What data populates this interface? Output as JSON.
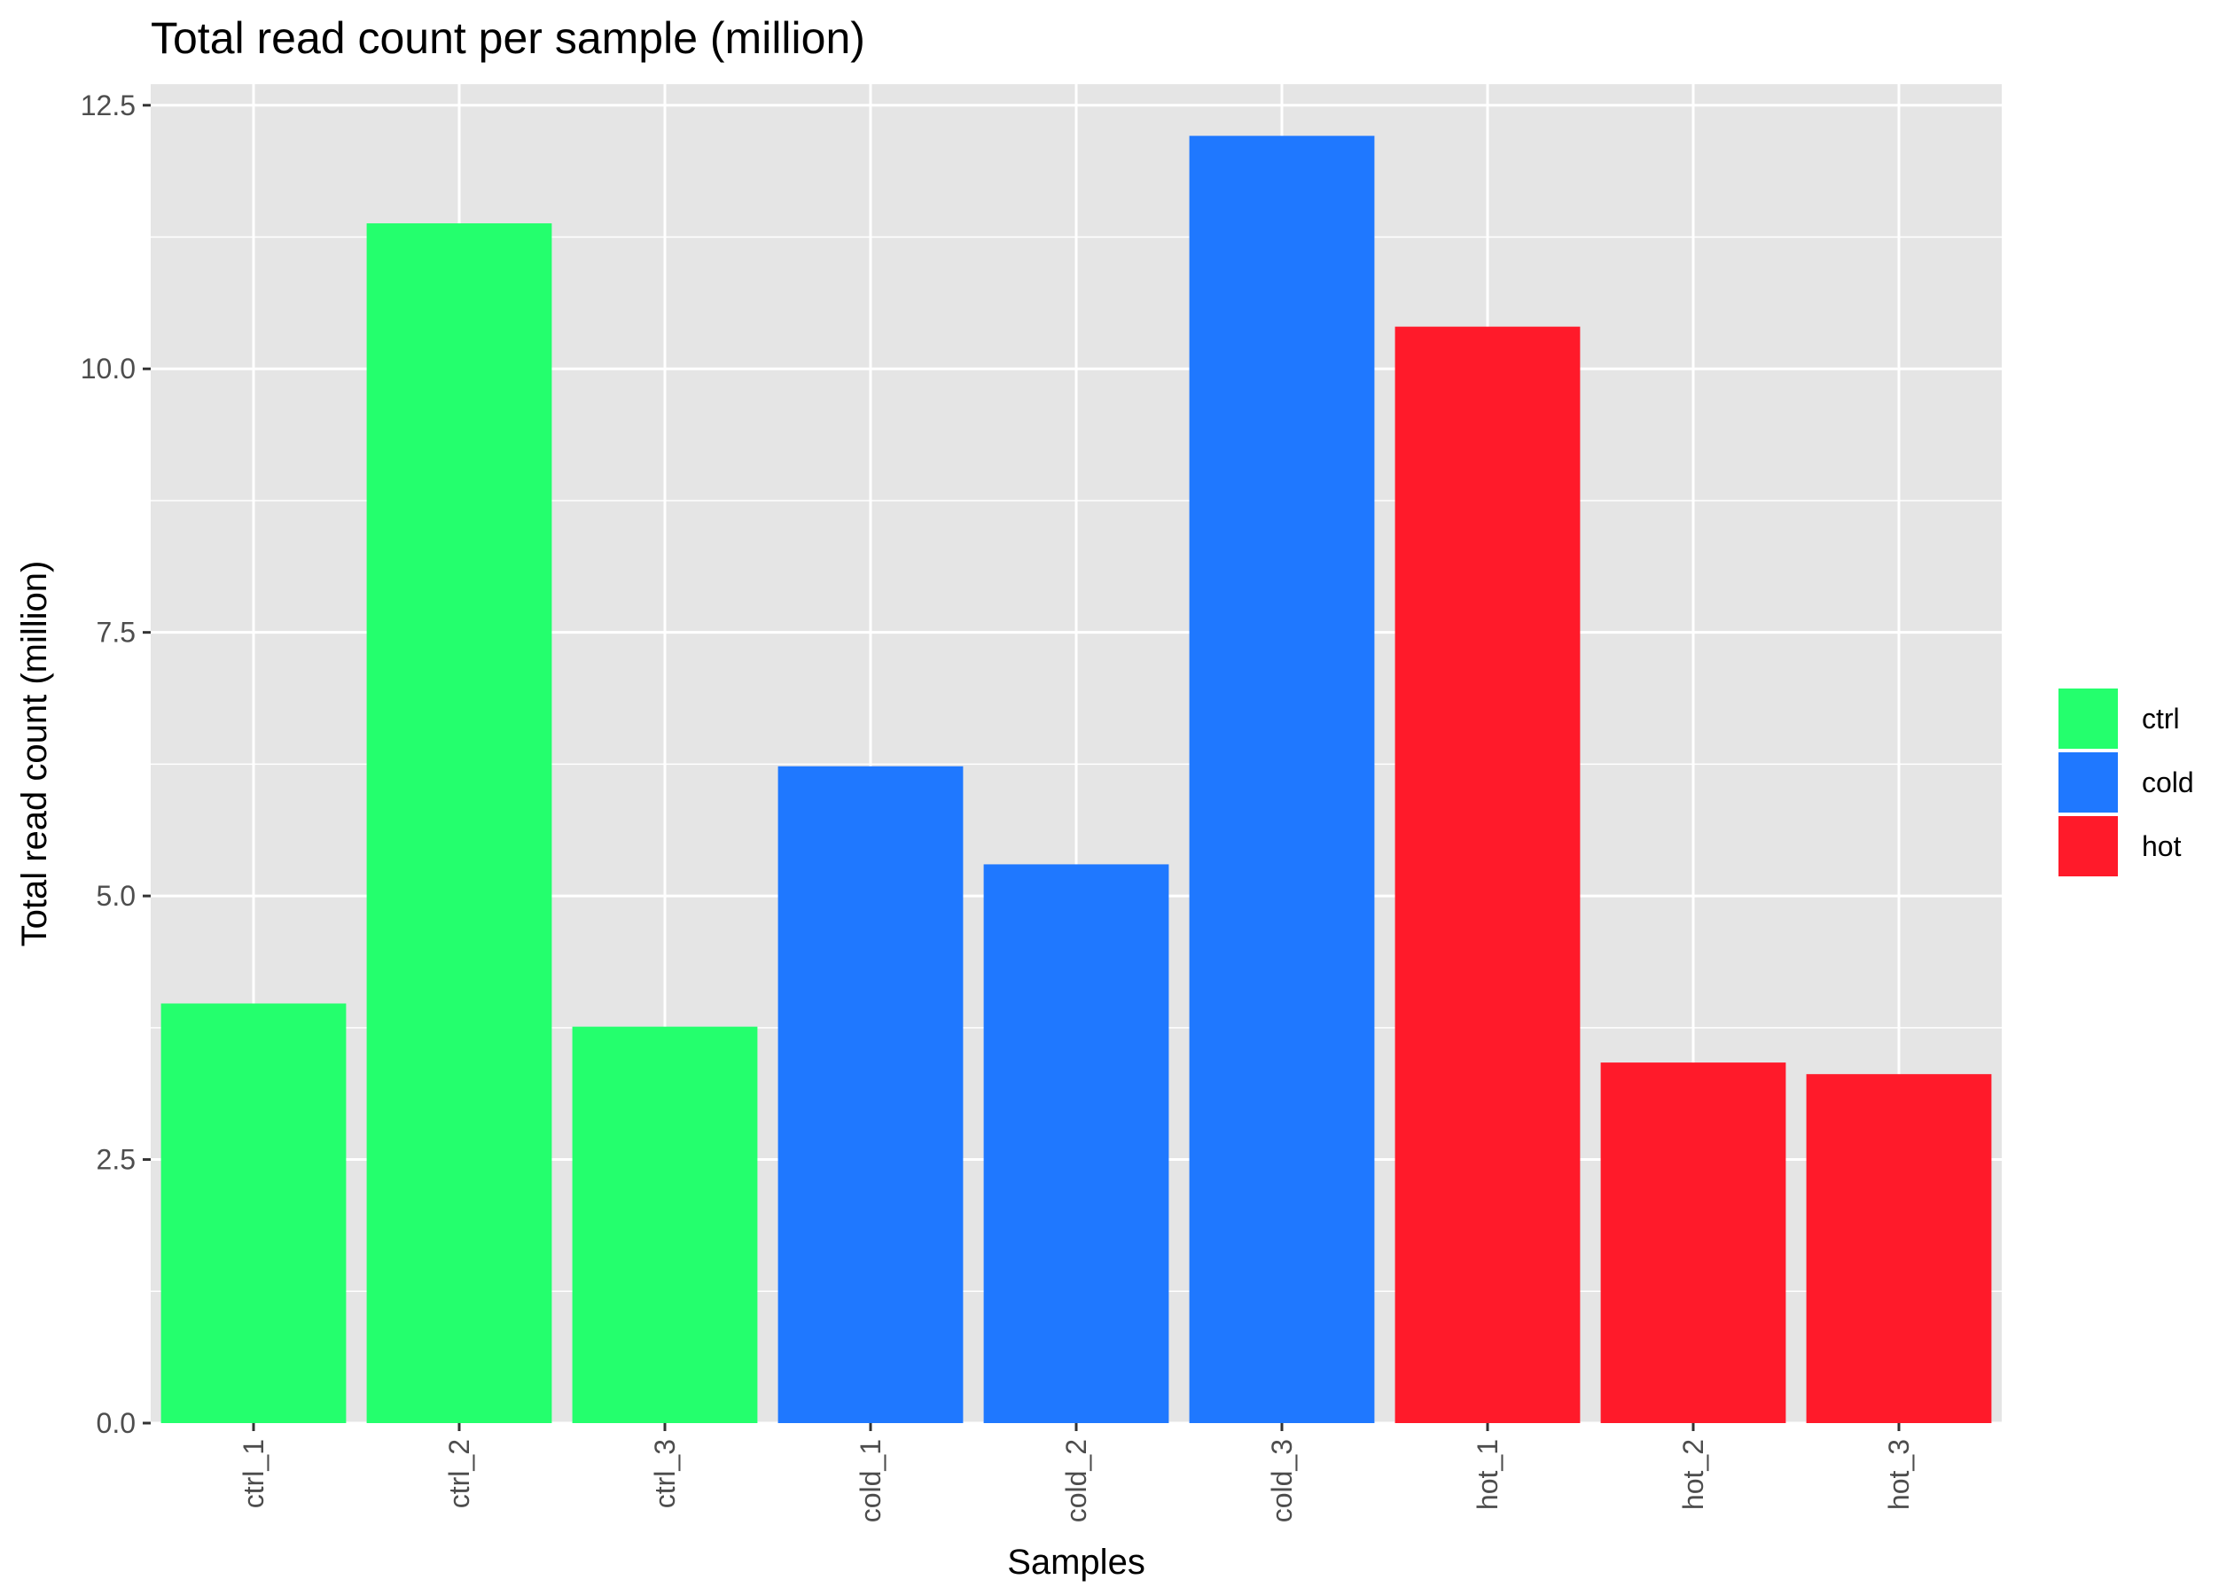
{
  "chart_data": {
    "type": "bar",
    "title": "Total read count per sample (million)",
    "xlabel": "Samples",
    "ylabel": "Total read count (million)",
    "categories": [
      "ctrl_1",
      "ctrl_2",
      "ctrl_3",
      "cold_1",
      "cold_2",
      "cold_3",
      "hot_1",
      "hot_2",
      "hot_3"
    ],
    "values": [
      3.98,
      11.38,
      3.76,
      6.23,
      5.3,
      12.21,
      10.4,
      3.42,
      3.31
    ],
    "groups": [
      "ctrl",
      "ctrl",
      "ctrl",
      "cold",
      "cold",
      "cold",
      "hot",
      "hot",
      "hot"
    ],
    "ylim": [
      0,
      12.7
    ],
    "yticks": [
      0,
      2.5,
      5,
      7.5,
      10,
      12.5
    ],
    "ytick_labels": [
      "0.0",
      "2.5",
      "5.0",
      "7.5",
      "10.0",
      "12.5"
    ],
    "grid": true,
    "legend": {
      "placement": "right",
      "entries": [
        {
          "name": "ctrl",
          "color": "#24FF6D"
        },
        {
          "name": "cold",
          "color": "#1F78FF"
        },
        {
          "name": "hot",
          "color": "#FF1A2A"
        }
      ]
    },
    "panel_color": "#E5E5E5"
  }
}
